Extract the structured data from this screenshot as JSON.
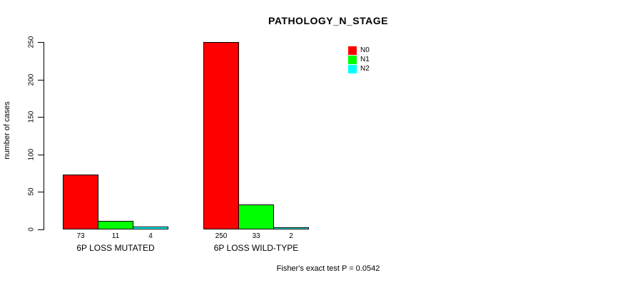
{
  "chart_data": {
    "type": "bar",
    "title": "PATHOLOGY_N_STAGE",
    "ylabel": "number of cases",
    "categories": [
      "6P LOSS MUTATED",
      "6P LOSS WILD-TYPE"
    ],
    "series": [
      {
        "name": "N0",
        "color": "#FF0000",
        "values": [
          73,
          250
        ]
      },
      {
        "name": "N1",
        "color": "#00FF00",
        "values": [
          11,
          33
        ]
      },
      {
        "name": "N2",
        "color": "#00FFFF",
        "values": [
          4,
          2
        ]
      }
    ],
    "bar_value_labels": [
      [
        "73",
        "11",
        "4"
      ],
      [
        "250",
        "33",
        "2"
      ]
    ],
    "yticks": [
      "0",
      "50",
      "100",
      "150",
      "200",
      "250"
    ],
    "ylim": [
      0,
      250
    ],
    "grid": false,
    "legend_position": "top-right",
    "annotation": "Fisher's exact test P = 0.0542"
  }
}
